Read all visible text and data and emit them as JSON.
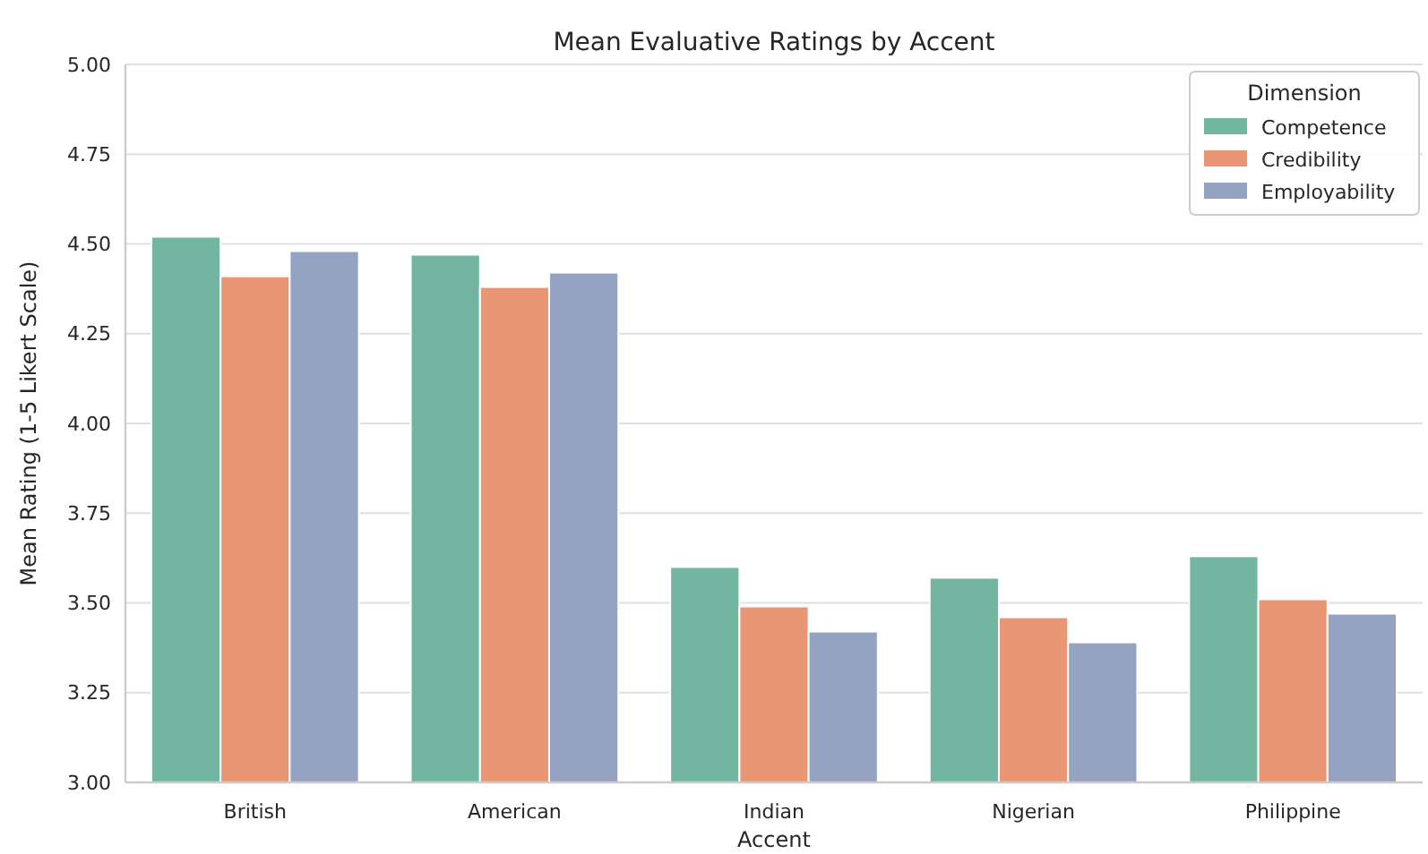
{
  "chart_data": {
    "type": "bar",
    "title": "Mean Evaluative Ratings by Accent",
    "xlabel": "Accent",
    "ylabel": "Mean Rating (1-5 Likert Scale)",
    "legend_title": "Dimension",
    "categories": [
      "British",
      "American",
      "Indian",
      "Nigerian",
      "Philippine"
    ],
    "series": [
      {
        "name": "Competence",
        "color": "#72b6a1",
        "values": [
          4.52,
          4.47,
          3.6,
          3.57,
          3.63
        ]
      },
      {
        "name": "Credibility",
        "color": "#e99675",
        "values": [
          4.41,
          4.38,
          3.49,
          3.46,
          3.51
        ]
      },
      {
        "name": "Employability",
        "color": "#95a3c3",
        "values": [
          4.48,
          4.42,
          3.42,
          3.39,
          3.47
        ]
      }
    ],
    "ylim": [
      3,
      5
    ],
    "yticks": [
      {
        "value": 3,
        "label": "3.00"
      },
      {
        "value": 3.25,
        "label": "3.25"
      },
      {
        "value": 3.5,
        "label": "3.50"
      },
      {
        "value": 3.75,
        "label": "3.75"
      },
      {
        "value": 4,
        "label": "4.00"
      },
      {
        "value": 4.25,
        "label": "4.25"
      },
      {
        "value": 4.5,
        "label": "4.50"
      },
      {
        "value": 4.75,
        "label": "4.75"
      },
      {
        "value": 5,
        "label": "5.00"
      }
    ],
    "grid": "y",
    "legend": "top right"
  }
}
